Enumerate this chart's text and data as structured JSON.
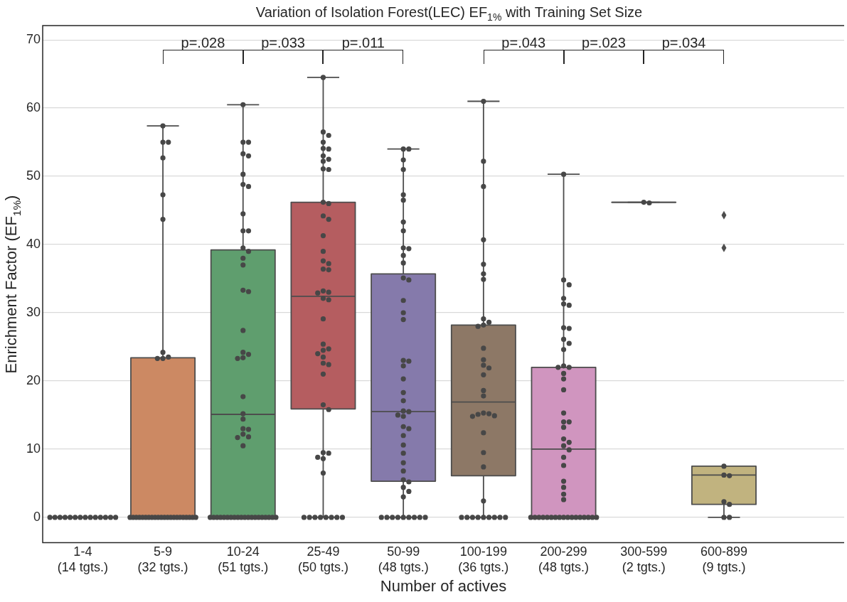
{
  "chart_data": {
    "type": "box",
    "title": "Variation of Isolation Forest(LEC) EF$_{1%}$ with Training Set Size",
    "xlabel": "Number of actives",
    "ylabel": "Enrichment Factor (EF$_{1%}$)",
    "categories": [
      "1-4\n(14 tgts.)",
      "5-9\n(32 tgts.)",
      "10-24\n(51 tgts.)",
      "25-49\n(50 tgts.)",
      "50-99\n(48 tgts.)",
      "100-199\n(36 tgts.)",
      "200-299\n(48 tgts.)",
      "300-599\n(2 tgts.)",
      "600-899\n(9 tgts.)",
      null
    ],
    "colors": [
      null,
      "#cc8963",
      "#5f9e6e",
      "#b55d60",
      "#857aab",
      "#8d7866",
      "#d095bf",
      null,
      "#c1b37f",
      null
    ],
    "boxes": [
      {
        "low": 0,
        "q1": 0,
        "median": 0,
        "q3": 0,
        "high": 0
      },
      {
        "low": 0,
        "q1": 0,
        "median": 0,
        "q3": 23.4,
        "high": 57.4
      },
      {
        "low": 0,
        "q1": 0,
        "median": 15.1,
        "q3": 39.2,
        "high": 60.5
      },
      {
        "low": 0,
        "q1": 15.9,
        "median": 32.4,
        "q3": 46.2,
        "high": 64.5
      },
      {
        "low": 0,
        "q1": 5.3,
        "median": 15.5,
        "q3": 35.7,
        "high": 54
      },
      {
        "low": 0,
        "q1": 6.1,
        "median": 16.9,
        "q3": 28.2,
        "high": 61
      },
      {
        "low": 0,
        "q1": 0,
        "median": 10,
        "q3": 22,
        "high": 50.3
      },
      {
        "low": 46.2,
        "q1": 46.2,
        "median": 46.2,
        "q3": 46.2,
        "high": 46.2
      },
      {
        "low": 0,
        "q1": 1.9,
        "median": 6.2,
        "q3": 7.5,
        "high": 7.5,
        "outliers": [
          44.3,
          39.5
        ]
      },
      null
    ],
    "series": [
      {
        "type": "scatter",
        "color": "#474747",
        "x": [
          "1-4\n(14 tgts.)",
          "1-4\n(14 tgts.)",
          "1-4\n(14 tgts.)",
          "1-4\n(14 tgts.)",
          "1-4\n(14 tgts.)",
          "1-4\n(14 tgts.)",
          "1-4\n(14 tgts.)",
          "1-4\n(14 tgts.)",
          "1-4\n(14 tgts.)",
          "1-4\n(14 tgts.)",
          "1-4\n(14 tgts.)",
          "1-4\n(14 tgts.)",
          "1-4\n(14 tgts.)",
          "1-4\n(14 tgts.)"
        ],
        "values": [
          0,
          0,
          0,
          0,
          0,
          0,
          0,
          0,
          0,
          0,
          0,
          0,
          0,
          0
        ]
      },
      {
        "type": "scatter",
        "color": "#474747",
        "x": [
          "5-9\n(32 tgts.)",
          "5-9\n(32 tgts.)",
          "5-9\n(32 tgts.)",
          "5-9\n(32 tgts.)",
          "5-9\n(32 tgts.)",
          "5-9\n(32 tgts.)",
          "5-9\n(32 tgts.)",
          "5-9\n(32 tgts.)",
          "5-9\n(32 tgts.)",
          "5-9\n(32 tgts.)",
          "5-9\n(32 tgts.)",
          "5-9\n(32 tgts.)",
          "5-9\n(32 tgts.)",
          "5-9\n(32 tgts.)",
          "5-9\n(32 tgts.)",
          "5-9\n(32 tgts.)",
          "5-9\n(32 tgts.)",
          "5-9\n(32 tgts.)",
          "5-9\n(32 tgts.)",
          "5-9\n(32 tgts.)",
          "5-9\n(32 tgts.)",
          "5-9\n(32 tgts.)",
          "5-9\n(32 tgts.)",
          "5-9\n(32 tgts.)",
          "5-9\n(32 tgts.)",
          "5-9\n(32 tgts.)",
          "5-9\n(32 tgts.)",
          "5-9\n(32 tgts.)",
          "5-9\n(32 tgts.)",
          "5-9\n(32 tgts.)",
          "5-9\n(32 tgts.)",
          "5-9\n(32 tgts.)"
        ],
        "values": [
          57.4,
          55,
          55,
          52.7,
          47.3,
          43.7,
          24.2,
          23.5,
          23.3,
          23.3,
          0,
          0,
          0,
          0,
          0,
          0,
          0,
          0,
          0,
          0,
          0,
          0,
          0,
          0,
          0,
          0,
          0,
          0,
          0,
          0,
          0,
          0
        ]
      },
      {
        "type": "scatter",
        "color": "#474747",
        "x": [
          "10-24\n(51 tgts.)",
          "10-24\n(51 tgts.)",
          "10-24\n(51 tgts.)",
          "10-24\n(51 tgts.)",
          "10-24\n(51 tgts.)",
          "10-24\n(51 tgts.)",
          "10-24\n(51 tgts.)",
          "10-24\n(51 tgts.)",
          "10-24\n(51 tgts.)",
          "10-24\n(51 tgts.)",
          "10-24\n(51 tgts.)",
          "10-24\n(51 tgts.)",
          "10-24\n(51 tgts.)",
          "10-24\n(51 tgts.)",
          "10-24\n(51 tgts.)",
          "10-24\n(51 tgts.)",
          "10-24\n(51 tgts.)",
          "10-24\n(51 tgts.)",
          "10-24\n(51 tgts.)",
          "10-24\n(51 tgts.)",
          "10-24\n(51 tgts.)",
          "10-24\n(51 tgts.)",
          "10-24\n(51 tgts.)",
          "10-24\n(51 tgts.)",
          "10-24\n(51 tgts.)",
          "10-24\n(51 tgts.)",
          "10-24\n(51 tgts.)",
          "10-24\n(51 tgts.)",
          "10-24\n(51 tgts.)",
          "10-24\n(51 tgts.)",
          "10-24\n(51 tgts.)",
          "10-24\n(51 tgts.)",
          "10-24\n(51 tgts.)",
          "10-24\n(51 tgts.)",
          "10-24\n(51 tgts.)",
          "10-24\n(51 tgts.)",
          "10-24\n(51 tgts.)",
          "10-24\n(51 tgts.)",
          "10-24\n(51 tgts.)",
          "10-24\n(51 tgts.)",
          "10-24\n(51 tgts.)",
          "10-24\n(51 tgts.)",
          "10-24\n(51 tgts.)",
          "10-24\n(51 tgts.)",
          "10-24\n(51 tgts.)",
          "10-24\n(51 tgts.)",
          "10-24\n(51 tgts.)",
          "10-24\n(51 tgts.)",
          "10-24\n(51 tgts.)",
          "10-24\n(51 tgts.)",
          "10-24\n(51 tgts.)"
        ],
        "values": [
          60.5,
          55,
          55,
          53.3,
          53,
          50.3,
          48.8,
          48.5,
          44.5,
          42,
          42,
          39.5,
          39,
          38,
          37,
          33.3,
          33.1,
          27.4,
          24.2,
          23.9,
          23.4,
          23.3,
          17.7,
          15.2,
          14.4,
          13,
          12.9,
          12.2,
          11.8,
          11.7,
          10.5,
          0,
          0,
          0,
          0,
          0,
          0,
          0,
          0,
          0,
          0,
          0,
          0,
          0,
          0,
          0,
          0,
          0,
          0,
          0,
          0
        ]
      },
      {
        "type": "scatter",
        "color": "#474747",
        "x": [
          "25-49\n(50 tgts.)",
          "25-49\n(50 tgts.)",
          "25-49\n(50 tgts.)",
          "25-49\n(50 tgts.)",
          "25-49\n(50 tgts.)",
          "25-49\n(50 tgts.)",
          "25-49\n(50 tgts.)",
          "25-49\n(50 tgts.)",
          "25-49\n(50 tgts.)",
          "25-49\n(50 tgts.)",
          "25-49\n(50 tgts.)",
          "25-49\n(50 tgts.)",
          "25-49\n(50 tgts.)",
          "25-49\n(50 tgts.)",
          "25-49\n(50 tgts.)",
          "25-49\n(50 tgts.)",
          "25-49\n(50 tgts.)",
          "25-49\n(50 tgts.)",
          "25-49\n(50 tgts.)",
          "25-49\n(50 tgts.)",
          "25-49\n(50 tgts.)",
          "25-49\n(50 tgts.)",
          "25-49\n(50 tgts.)",
          "25-49\n(50 tgts.)",
          "25-49\n(50 tgts.)",
          "25-49\n(50 tgts.)",
          "25-49\n(50 tgts.)",
          "25-49\n(50 tgts.)",
          "25-49\n(50 tgts.)",
          "25-49\n(50 tgts.)",
          "25-49\n(50 tgts.)",
          "25-49\n(50 tgts.)",
          "25-49\n(50 tgts.)",
          "25-49\n(50 tgts.)",
          "25-49\n(50 tgts.)",
          "25-49\n(50 tgts.)",
          "25-49\n(50 tgts.)",
          "25-49\n(50 tgts.)",
          "25-49\n(50 tgts.)",
          "25-49\n(50 tgts.)",
          "25-49\n(50 tgts.)",
          "25-49\n(50 tgts.)",
          "25-49\n(50 tgts.)",
          "25-49\n(50 tgts.)",
          "25-49\n(50 tgts.)",
          "25-49\n(50 tgts.)",
          "25-49\n(50 tgts.)",
          "25-49\n(50 tgts.)",
          "25-49\n(50 tgts.)",
          "25-49\n(50 tgts.)"
        ],
        "values": [
          64.5,
          56.5,
          56,
          55,
          54.1,
          54,
          53,
          52.5,
          52.2,
          51.1,
          51,
          46.2,
          46,
          44.2,
          43.7,
          41.3,
          39,
          37.6,
          37.2,
          36.4,
          36.3,
          33.2,
          33,
          32.9,
          32.1,
          31.9,
          29.1,
          25.4,
          24.7,
          24.5,
          24,
          23.5,
          22.6,
          22.4,
          21,
          16.5,
          15.8,
          9.5,
          9.4,
          8.8,
          8.6,
          6.5,
          0,
          0,
          0,
          0,
          0,
          0,
          0,
          0
        ]
      },
      {
        "type": "scatter",
        "color": "#474747",
        "x": [
          "50-99\n(48 tgts.)",
          "50-99\n(48 tgts.)",
          "50-99\n(48 tgts.)",
          "50-99\n(48 tgts.)",
          "50-99\n(48 tgts.)",
          "50-99\n(48 tgts.)",
          "50-99\n(48 tgts.)",
          "50-99\n(48 tgts.)",
          "50-99\n(48 tgts.)",
          "50-99\n(48 tgts.)",
          "50-99\n(48 tgts.)",
          "50-99\n(48 tgts.)",
          "50-99\n(48 tgts.)",
          "50-99\n(48 tgts.)",
          "50-99\n(48 tgts.)",
          "50-99\n(48 tgts.)",
          "50-99\n(48 tgts.)",
          "50-99\n(48 tgts.)",
          "50-99\n(48 tgts.)",
          "50-99\n(48 tgts.)",
          "50-99\n(48 tgts.)",
          "50-99\n(48 tgts.)",
          "50-99\n(48 tgts.)",
          "50-99\n(48 tgts.)",
          "50-99\n(48 tgts.)",
          "50-99\n(48 tgts.)",
          "50-99\n(48 tgts.)",
          "50-99\n(48 tgts.)",
          "50-99\n(48 tgts.)",
          "50-99\n(48 tgts.)",
          "50-99\n(48 tgts.)",
          "50-99\n(48 tgts.)",
          "50-99\n(48 tgts.)",
          "50-99\n(48 tgts.)",
          "50-99\n(48 tgts.)",
          "50-99\n(48 tgts.)",
          "50-99\n(48 tgts.)",
          "50-99\n(48 tgts.)",
          "50-99\n(48 tgts.)",
          "50-99\n(48 tgts.)",
          "50-99\n(48 tgts.)",
          "50-99\n(48 tgts.)",
          "50-99\n(48 tgts.)",
          "50-99\n(48 tgts.)",
          "50-99\n(48 tgts.)",
          "50-99\n(48 tgts.)",
          "50-99\n(48 tgts.)",
          "50-99\n(48 tgts.)"
        ],
        "values": [
          54,
          54,
          52.4,
          51,
          47.3,
          46.5,
          43.3,
          42,
          39.5,
          39.4,
          38.4,
          37.3,
          35.1,
          34.8,
          31.8,
          30,
          29,
          23,
          22.9,
          22.2,
          20.3,
          18.3,
          17.1,
          15.6,
          15.5,
          15,
          14.8,
          13.3,
          13,
          12,
          10.6,
          9.4,
          8,
          6.8,
          5.5,
          5.2,
          4.4,
          3.8,
          3,
          0,
          0,
          0,
          0,
          0,
          0,
          0,
          0,
          0
        ]
      },
      {
        "type": "scatter",
        "color": "#474747",
        "x": [
          "100-199\n(36 tgts.)",
          "100-199\n(36 tgts.)",
          "100-199\n(36 tgts.)",
          "100-199\n(36 tgts.)",
          "100-199\n(36 tgts.)",
          "100-199\n(36 tgts.)",
          "100-199\n(36 tgts.)",
          "100-199\n(36 tgts.)",
          "100-199\n(36 tgts.)",
          "100-199\n(36 tgts.)",
          "100-199\n(36 tgts.)",
          "100-199\n(36 tgts.)",
          "100-199\n(36 tgts.)",
          "100-199\n(36 tgts.)",
          "100-199\n(36 tgts.)",
          "100-199\n(36 tgts.)",
          "100-199\n(36 tgts.)",
          "100-199\n(36 tgts.)",
          "100-199\n(36 tgts.)",
          "100-199\n(36 tgts.)",
          "100-199\n(36 tgts.)",
          "100-199\n(36 tgts.)",
          "100-199\n(36 tgts.)",
          "100-199\n(36 tgts.)",
          "100-199\n(36 tgts.)",
          "100-199\n(36 tgts.)",
          "100-199\n(36 tgts.)",
          "100-199\n(36 tgts.)",
          "100-199\n(36 tgts.)",
          "100-199\n(36 tgts.)",
          "100-199\n(36 tgts.)",
          "100-199\n(36 tgts.)",
          "100-199\n(36 tgts.)",
          "100-199\n(36 tgts.)",
          "100-199\n(36 tgts.)",
          "100-199\n(36 tgts.)"
        ],
        "values": [
          61,
          52.2,
          48.5,
          40.7,
          37.1,
          35.7,
          34.9,
          29.1,
          28.6,
          28.2,
          28,
          24.8,
          23.1,
          22.3,
          21.9,
          20.9,
          18.6,
          17.8,
          15.3,
          15.2,
          15.1,
          14.9,
          14.8,
          12.4,
          9.5,
          7.4,
          2.4,
          0,
          0,
          0,
          0,
          0,
          0,
          0,
          0,
          0
        ]
      },
      {
        "type": "scatter",
        "color": "#474747",
        "x": [
          "200-299\n(48 tgts.)",
          "200-299\n(48 tgts.)",
          "200-299\n(48 tgts.)",
          "200-299\n(48 tgts.)",
          "200-299\n(48 tgts.)",
          "200-299\n(48 tgts.)",
          "200-299\n(48 tgts.)",
          "200-299\n(48 tgts.)",
          "200-299\n(48 tgts.)",
          "200-299\n(48 tgts.)",
          "200-299\n(48 tgts.)",
          "200-299\n(48 tgts.)",
          "200-299\n(48 tgts.)",
          "200-299\n(48 tgts.)",
          "200-299\n(48 tgts.)",
          "200-299\n(48 tgts.)",
          "200-299\n(48 tgts.)",
          "200-299\n(48 tgts.)",
          "200-299\n(48 tgts.)",
          "200-299\n(48 tgts.)",
          "200-299\n(48 tgts.)",
          "200-299\n(48 tgts.)",
          "200-299\n(48 tgts.)",
          "200-299\n(48 tgts.)",
          "200-299\n(48 tgts.)",
          "200-299\n(48 tgts.)",
          "200-299\n(48 tgts.)",
          "200-299\n(48 tgts.)",
          "200-299\n(48 tgts.)",
          "200-299\n(48 tgts.)",
          "200-299\n(48 tgts.)",
          "200-299\n(48 tgts.)",
          "200-299\n(48 tgts.)",
          "200-299\n(48 tgts.)",
          "200-299\n(48 tgts.)",
          "200-299\n(48 tgts.)",
          "200-299\n(48 tgts.)",
          "200-299\n(48 tgts.)",
          "200-299\n(48 tgts.)",
          "200-299\n(48 tgts.)",
          "200-299\n(48 tgts.)",
          "200-299\n(48 tgts.)",
          "200-299\n(48 tgts.)",
          "200-299\n(48 tgts.)",
          "200-299\n(48 tgts.)",
          "200-299\n(48 tgts.)",
          "200-299\n(48 tgts.)",
          "200-299\n(48 tgts.)"
        ],
        "values": [
          50.3,
          34.8,
          34.1,
          32.1,
          31.3,
          31.1,
          27.8,
          27.7,
          26.1,
          25.5,
          24.6,
          22.2,
          22,
          22,
          21.1,
          20.3,
          18.7,
          15.3,
          14,
          14,
          13.2,
          11.5,
          11,
          10.5,
          9.9,
          8.8,
          7.6,
          5.3,
          4.4,
          3.4,
          2.6,
          0,
          0,
          0,
          0,
          0,
          0,
          0,
          0,
          0,
          0,
          0,
          0,
          0,
          0,
          0,
          0,
          0
        ]
      },
      {
        "type": "scatter",
        "color": "#474747",
        "x": [
          "300-599\n(2 tgts.)",
          "300-599\n(2 tgts.)"
        ],
        "values": [
          46.2,
          46.1
        ]
      },
      {
        "type": "scatter",
        "color": "#474747",
        "x": [
          "600-899\n(9 tgts.)",
          "600-899\n(9 tgts.)",
          "600-899\n(9 tgts.)",
          "600-899\n(9 tgts.)",
          "600-899\n(9 tgts.)",
          "600-899\n(9 tgts.)",
          "600-899\n(9 tgts.)"
        ],
        "values": [
          7.5,
          6.2,
          6.1,
          2.3,
          1.9,
          0,
          0
        ]
      }
    ],
    "annotations": [
      "p=.028",
      "p=.033",
      "p=.011",
      "p=.043",
      "p=.023",
      "p=.034"
    ],
    "ylim": [
      -3.7,
      72.1
    ],
    "yticks": [
      0,
      10,
      20,
      30,
      40,
      50,
      60,
      70
    ],
    "grid": "y",
    "legend": false,
    "marker": "circle"
  }
}
